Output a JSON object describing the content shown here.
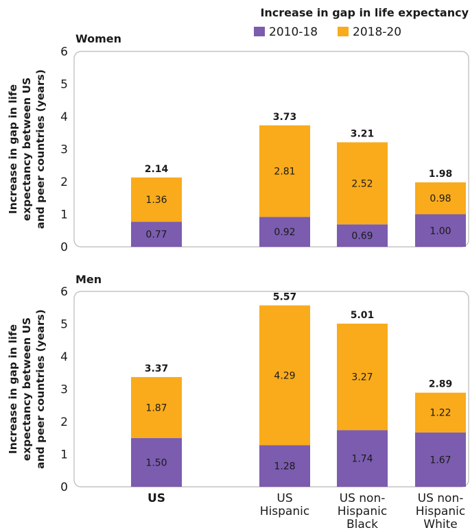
{
  "legend": {
    "title": "Increase in gap in life expectancy",
    "items": [
      {
        "label": "2010-18",
        "color": "#7b5cae"
      },
      {
        "label": "2018-20",
        "color": "#f9ab1b"
      }
    ]
  },
  "colors": {
    "frame": "#b8b8b8",
    "text": "#1a1a1a",
    "bar_label_light": "#ffffff"
  },
  "chart_data": [
    {
      "type": "bar",
      "stacked": true,
      "panel_title": "Women",
      "ylabel": "Increase in gap in life expectancy between US and peer countries (years)",
      "ylabel_lines": [
        "Increase in gap in life",
        "expectancy between US",
        "and peer countries (years)"
      ],
      "ylim": [
        0,
        6
      ],
      "yticks": [
        "0",
        "1",
        "2",
        "3",
        "4",
        "5",
        "6"
      ],
      "grid": false,
      "categories": [
        "US",
        "US Hispanic",
        "US non-Hispanic Black",
        "US non-Hispanic White"
      ],
      "series": [
        {
          "name": "2010-18",
          "values": [
            0.77,
            0.92,
            0.69,
            1.0
          ],
          "labels": [
            "0.77",
            "0.92",
            "0.69",
            "1.00"
          ]
        },
        {
          "name": "2018-20",
          "values": [
            1.36,
            2.81,
            2.52,
            0.98
          ],
          "labels": [
            "1.36",
            "2.81",
            "2.52",
            "0.98"
          ]
        }
      ],
      "totals": [
        2.14,
        3.73,
        3.21,
        1.98
      ],
      "total_labels": [
        "2.14",
        "3.73",
        "3.21",
        "1.98"
      ]
    },
    {
      "type": "bar",
      "stacked": true,
      "panel_title": "Men",
      "ylabel": "Increase in gap in life expectancy between US and peer countries (years)",
      "ylabel_lines": [
        "Increase in gap in life",
        "expectancy between US",
        "and peer countries (years)"
      ],
      "ylim": [
        0,
        6
      ],
      "yticks": [
        "0",
        "1",
        "2",
        "3",
        "4",
        "5",
        "6"
      ],
      "grid": false,
      "categories": [
        "US",
        "US Hispanic",
        "US non-Hispanic Black",
        "US non-Hispanic White"
      ],
      "category_lines": [
        [
          "US"
        ],
        [
          "US",
          "Hispanic"
        ],
        [
          "US non-",
          "Hispanic",
          "Black"
        ],
        [
          "US non-",
          "Hispanic",
          "White"
        ]
      ],
      "category_bold": [
        true,
        false,
        false,
        false
      ],
      "series": [
        {
          "name": "2010-18",
          "values": [
            1.5,
            1.28,
            1.74,
            1.67
          ],
          "labels": [
            "1.50",
            "1.28",
            "1.74",
            "1.67"
          ]
        },
        {
          "name": "2018-20",
          "values": [
            1.87,
            4.29,
            3.27,
            1.22
          ],
          "labels": [
            "1.87",
            "4.29",
            "3.27",
            "1.22"
          ]
        }
      ],
      "totals": [
        3.37,
        5.57,
        5.01,
        2.89
      ],
      "total_labels": [
        "3.37",
        "5.57",
        "5.01",
        "2.89"
      ]
    }
  ]
}
